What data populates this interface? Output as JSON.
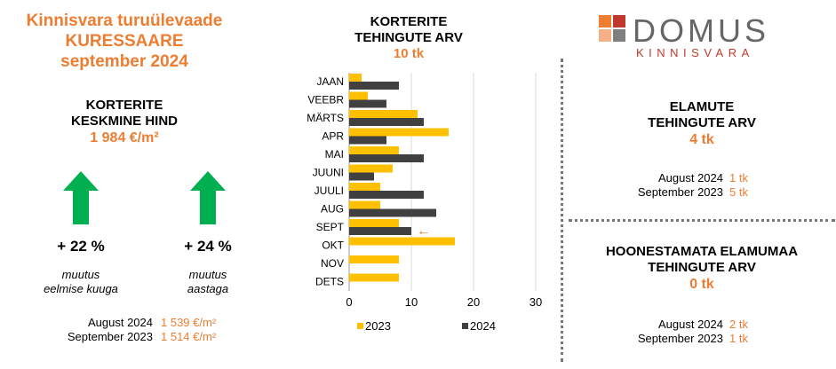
{
  "header": {
    "line1": "Kinnisvara turuülevaade",
    "line2": "KURESSAARE",
    "line3": "september 2024"
  },
  "apartments_price": {
    "title1": "KORTERITE",
    "title2": "KESKMINE HIND",
    "value": "1 984 €/m²",
    "change_month": {
      "pct": "+ 22 %",
      "desc1": "muutus",
      "desc2": "eelmise kuuga",
      "direction": "up"
    },
    "change_year": {
      "pct": "+ 24 %",
      "desc1": "muutus",
      "desc2": "aastaga",
      "direction": "up"
    },
    "compare": [
      {
        "label": "August 2024",
        "value": "1 539 €/m²"
      },
      {
        "label": "September 2023",
        "value": "1 514 €/m²"
      }
    ]
  },
  "apartments_deals": {
    "title1": "KORTERITE",
    "title2": "TEHINGUTE ARV",
    "value": "10 tk"
  },
  "chart_data": {
    "type": "bar",
    "orientation": "horizontal",
    "categories": [
      "JAAN",
      "VEEBR",
      "MÄRTS",
      "APR",
      "MAI",
      "JUUNI",
      "JUULI",
      "AUG",
      "SEPT",
      "OKT",
      "NOV",
      "DETS"
    ],
    "series": [
      {
        "name": "2023",
        "color": "#FFC000",
        "values": [
          2,
          3,
          11,
          16,
          8,
          7,
          5,
          5,
          8,
          17,
          8,
          8
        ]
      },
      {
        "name": "2024",
        "color": "#404040",
        "values": [
          8,
          6,
          12,
          6,
          12,
          4,
          12,
          14,
          10,
          null,
          null,
          null
        ]
      }
    ],
    "xlim": [
      0,
      30
    ],
    "xticks": [
      "0",
      "10",
      "20",
      "30"
    ],
    "grid": true,
    "legend": "bottom",
    "annotation": {
      "text": "←",
      "category": "SEPT",
      "color": "#ED7D31"
    }
  },
  "logo": {
    "name": "DOMUS",
    "sub": "KINNISVARA",
    "colors": [
      "#ED7D31",
      "#C0392B",
      "#F4B183",
      "#7F7F7F"
    ]
  },
  "houses": {
    "title1": "ELAMUTE",
    "title2": "TEHINGUTE ARV",
    "value": "4 tk",
    "compare": [
      {
        "label": "August 2024",
        "value": "1 tk"
      },
      {
        "label": "September 2023",
        "value": "5 tk"
      }
    ]
  },
  "land": {
    "title1": "HOONESTAMATA ELAMUMAA",
    "title2": "TEHINGUTE ARV",
    "value": "0 tk",
    "compare": [
      {
        "label": "August 2024",
        "value": "2 tk"
      },
      {
        "label": "September 2023",
        "value": "1 tk"
      }
    ]
  }
}
